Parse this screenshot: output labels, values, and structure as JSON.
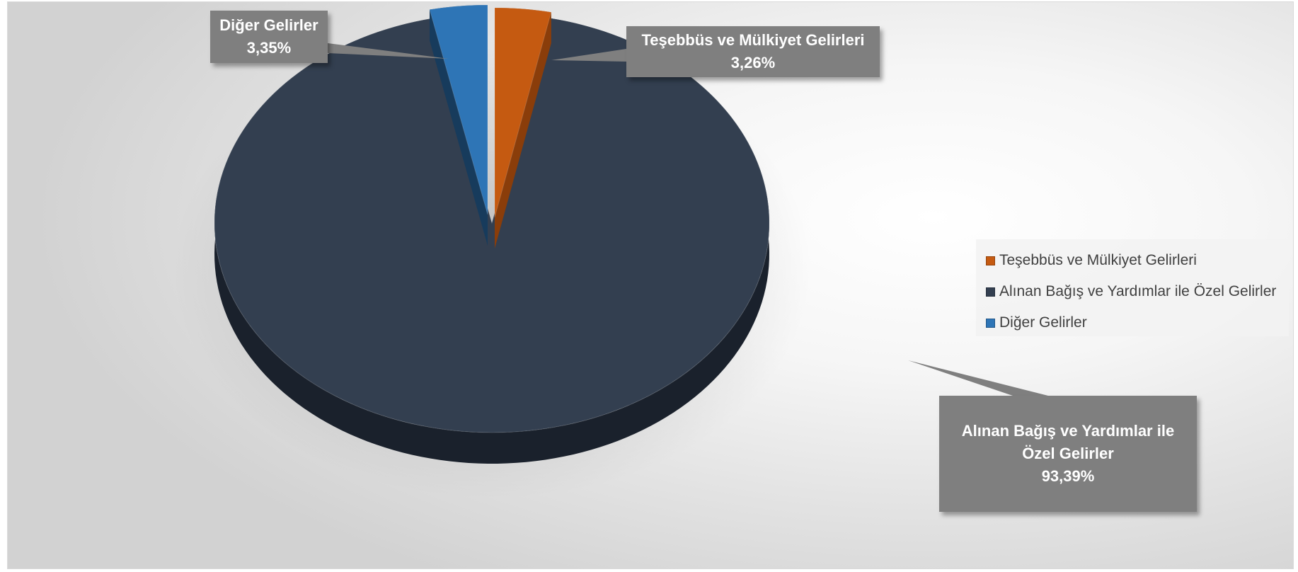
{
  "chart_data": {
    "type": "pie",
    "title": "",
    "legend_position": "right",
    "slices": [
      {
        "label": "Teşebbüs ve Mülkiyet Gelirleri",
        "value": 3.26,
        "display": "3,26%",
        "color": "#c55a11",
        "side_color": "#8a3d0a"
      },
      {
        "label": "Alınan Bağış ve Yardımlar ile Özel Gelirler",
        "value": 93.39,
        "display": "93,39%",
        "color": "#333f50",
        "side_color": "#1a212c"
      },
      {
        "label": "Diğer Gelirler",
        "value": 3.35,
        "display": "3,35%",
        "color": "#2e75b6",
        "side_color": "#173b5c"
      }
    ]
  },
  "callouts": {
    "tesebbus": {
      "line1": "Teşebbüs ve Mülkiyet Gelirleri",
      "value": "3,26%"
    },
    "alinan": {
      "line1": "Alınan Bağış ve Yardımlar ile",
      "line2": "Özel Gelirler",
      "value": "93,39%"
    },
    "diger": {
      "line1": "Diğer Gelirler",
      "value": "3,35%"
    }
  },
  "legend": {
    "items": [
      {
        "label": "Teşebbüs ve Mülkiyet Gelirleri",
        "color": "#c55a11"
      },
      {
        "label": "Alınan Bağış ve Yardımlar ile Özel Gelirler",
        "color": "#333f50"
      },
      {
        "label": "Diğer Gelirler",
        "color": "#2e75b6"
      }
    ]
  }
}
